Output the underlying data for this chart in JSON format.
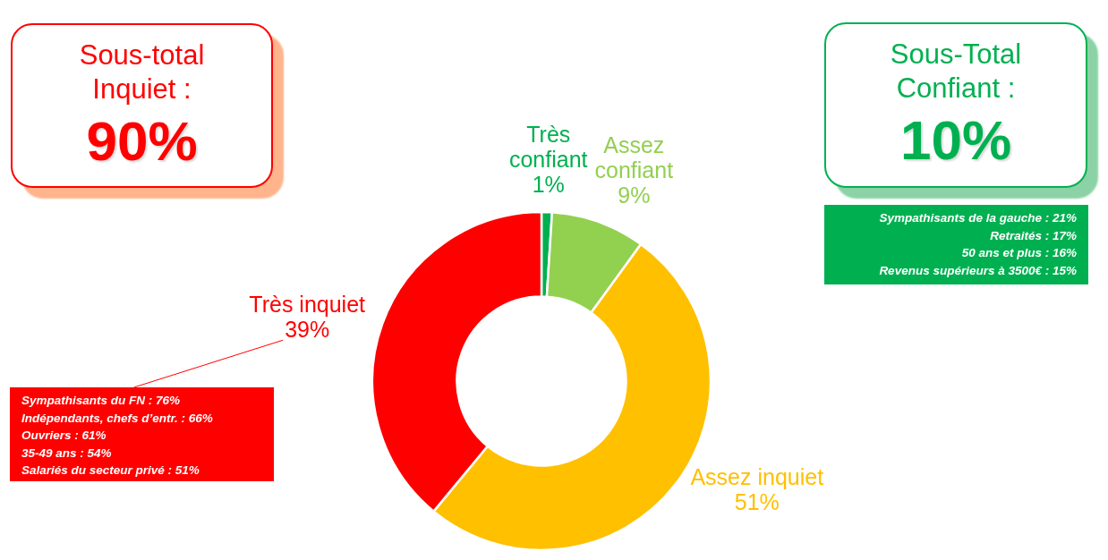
{
  "chart_data": {
    "type": "donut",
    "categories": [
      "Très confiant",
      "Assez confiant",
      "Assez inquiet",
      "Très inquiet"
    ],
    "values": [
      1,
      9,
      51,
      39
    ],
    "colors": [
      "#00b050",
      "#92d050",
      "#ffc000",
      "#ff0000"
    ],
    "value_labels": [
      "1%",
      "9%",
      "51%",
      "39%"
    ],
    "annotations": [
      "Sous-total Inquiet :",
      "90%",
      "Sous-Total Confiant :",
      "10%",
      "Sympathisants de la gauche : 21%",
      "Retraités : 17%",
      "50 ans et plus : 16%",
      "Revenus supérieurs à 3500€ : 15%",
      "Sympathisants du FN : 76%",
      "Indépendants, chefs d’entr. : 66%",
      "Ouvriers : 61%",
      "35-49 ans : 54%",
      "Salariés du secteur privé : 51%"
    ]
  }
}
